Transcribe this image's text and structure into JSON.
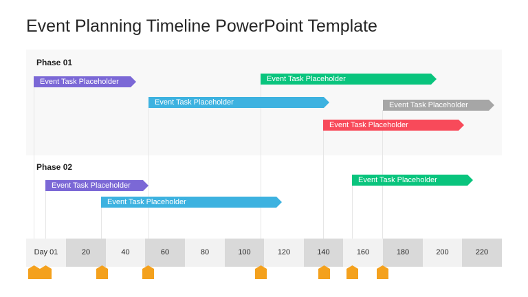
{
  "title": "Event Planning Timeline PowerPoint Template",
  "phases": [
    {
      "label": "Phase 01",
      "tasks": [
        {
          "label": "Event Task Placeholder",
          "color": "#7b68d6"
        },
        {
          "label": "Event Task Placeholder",
          "color": "#09c47d"
        },
        {
          "label": "Event Task Placeholder",
          "color": "#3db2e0"
        },
        {
          "label": "Event Task Placeholder",
          "color": "#a6a6a6"
        },
        {
          "label": "Event Task Placeholder",
          "color": "#f84a5a"
        }
      ]
    },
    {
      "label": "Phase 02",
      "tasks": [
        {
          "label": "Event Task Placeholder",
          "color": "#7b68d6"
        },
        {
          "label": "Event Task Placeholder",
          "color": "#09c47d"
        },
        {
          "label": "Event Task Placeholder",
          "color": "#3db2e0"
        }
      ]
    }
  ],
  "axis": {
    "labels": [
      "Day 01",
      "20",
      "40",
      "60",
      "80",
      "100",
      "120",
      "140",
      "160",
      "180",
      "200",
      "220"
    ],
    "shade_color": "#d9d9d9",
    "light_color": "#f2f2f2"
  },
  "milestones": {
    "icon": "pentagon-marker-icon",
    "color": "#f4a11d"
  }
}
